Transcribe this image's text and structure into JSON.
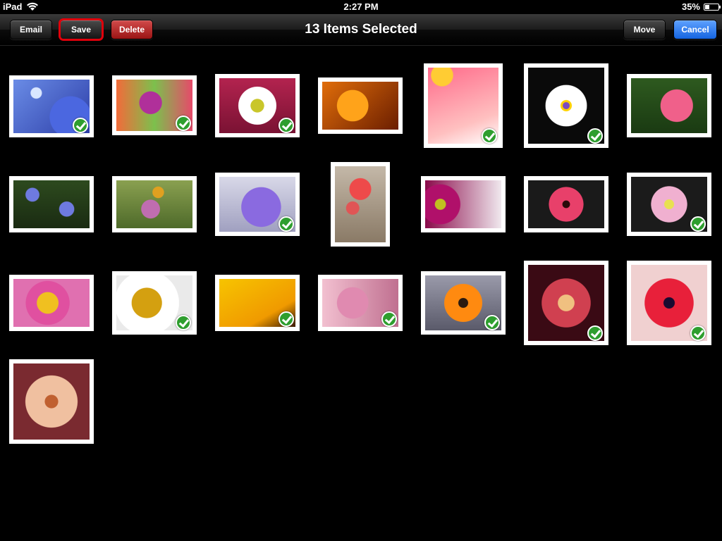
{
  "statusbar": {
    "device": "iPad",
    "time": "2:27 PM",
    "battery": "35%",
    "battery_level": 0.35
  },
  "toolbar": {
    "email_label": "Email",
    "save_label": "Save",
    "delete_label": "Delete",
    "title": "13 Items Selected",
    "move_label": "Move",
    "cancel_label": "Cancel"
  },
  "photos": [
    {
      "name": "blue-flowers",
      "selected": true
    },
    {
      "name": "purple-cluster",
      "selected": true
    },
    {
      "name": "daisy-red",
      "selected": true
    },
    {
      "name": "orange-lily",
      "selected": false
    },
    {
      "name": "pink-petal-closeup",
      "selected": true
    },
    {
      "name": "white-iris",
      "selected": true
    },
    {
      "name": "pink-camellia",
      "selected": false
    },
    {
      "name": "blue-asters",
      "selected": false
    },
    {
      "name": "bee-thistle",
      "selected": false
    },
    {
      "name": "purple-petunia",
      "selected": true
    },
    {
      "name": "red-roses",
      "selected": false
    },
    {
      "name": "magenta-daisy",
      "selected": false
    },
    {
      "name": "pink-gerbera",
      "selected": false
    },
    {
      "name": "pink-aster",
      "selected": true
    },
    {
      "name": "pink-peony",
      "selected": false
    },
    {
      "name": "white-daisy",
      "selected": true
    },
    {
      "name": "yellow-sunflower",
      "selected": true
    },
    {
      "name": "pink-blossom",
      "selected": true
    },
    {
      "name": "orange-gerbera",
      "selected": true
    },
    {
      "name": "red-dahlia",
      "selected": true
    },
    {
      "name": "red-ranunculus",
      "selected": true
    },
    {
      "name": "peach-dahlia",
      "selected": false
    }
  ]
}
